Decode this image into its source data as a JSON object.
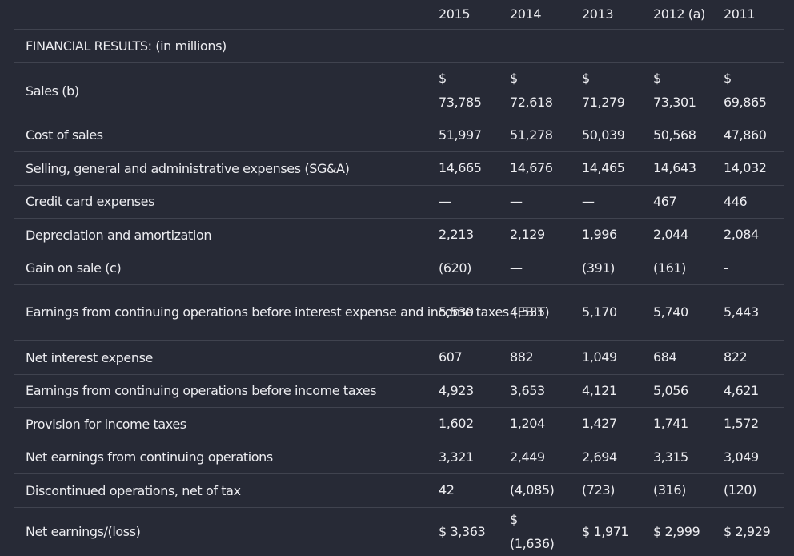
{
  "years": [
    "2015",
    "2014",
    "2013",
    "2012 (a)",
    "2011"
  ],
  "section_title": "FINANCIAL RESULTS: (in millions)",
  "rows": [
    {
      "label": "Sales (b)",
      "values": [
        [
          "$",
          "73,785"
        ],
        [
          "$",
          "72,618"
        ],
        [
          "$",
          "71,279"
        ],
        [
          "$",
          "73,301"
        ],
        [
          "$",
          "69,865"
        ]
      ]
    },
    {
      "label": "Cost of sales",
      "values": [
        "51,997",
        "51,278",
        "50,039",
        "50,568",
        "47,860"
      ]
    },
    {
      "label": "Selling, general and administrative expenses (SG&A)",
      "values": [
        "14,665",
        "14,676",
        "14,465",
        "14,643",
        "14,032"
      ]
    },
    {
      "label": "Credit card expenses",
      "values": [
        "—",
        "—",
        "—",
        "467",
        "446"
      ]
    },
    {
      "label": "Depreciation and amortization",
      "values": [
        "2,213",
        "2,129",
        "1,996",
        "2,044",
        "2,084"
      ]
    },
    {
      "label": "Gain on sale (c)",
      "values": [
        "(620)",
        "—",
        "(391)",
        "(161)",
        "-"
      ]
    },
    {
      "label": "Earnings from continuing operations before interest expense and income taxes (EBIT)",
      "values": [
        "5,530",
        "4,535",
        "5,170",
        "5,740",
        "5,443"
      ]
    },
    {
      "label": "Net interest expense",
      "values": [
        "607",
        "882",
        "1,049",
        "684",
        "822"
      ]
    },
    {
      "label": "Earnings from continuing operations before income taxes",
      "values": [
        "4,923",
        "3,653",
        "4,121",
        "5,056",
        "4,621"
      ]
    },
    {
      "label": "Provision for income taxes",
      "values": [
        "1,602",
        "1,204",
        "1,427",
        "1,741",
        "1,572"
      ]
    },
    {
      "label": "Net earnings from continuing operations",
      "values": [
        "3,321",
        "2,449",
        "2,694",
        "3,315",
        "3,049"
      ]
    },
    {
      "label": "Discontinued operations, net of tax",
      "values": [
        "42",
        "(4,085)",
        "(723)",
        "(316)",
        "(120)"
      ]
    },
    {
      "label": "Net earnings/(loss)",
      "values": [
        "$ 3,363",
        [
          "$",
          "(1,636)"
        ],
        "$ 1,971",
        "$ 2,999",
        "$ 2,929"
      ]
    }
  ]
}
